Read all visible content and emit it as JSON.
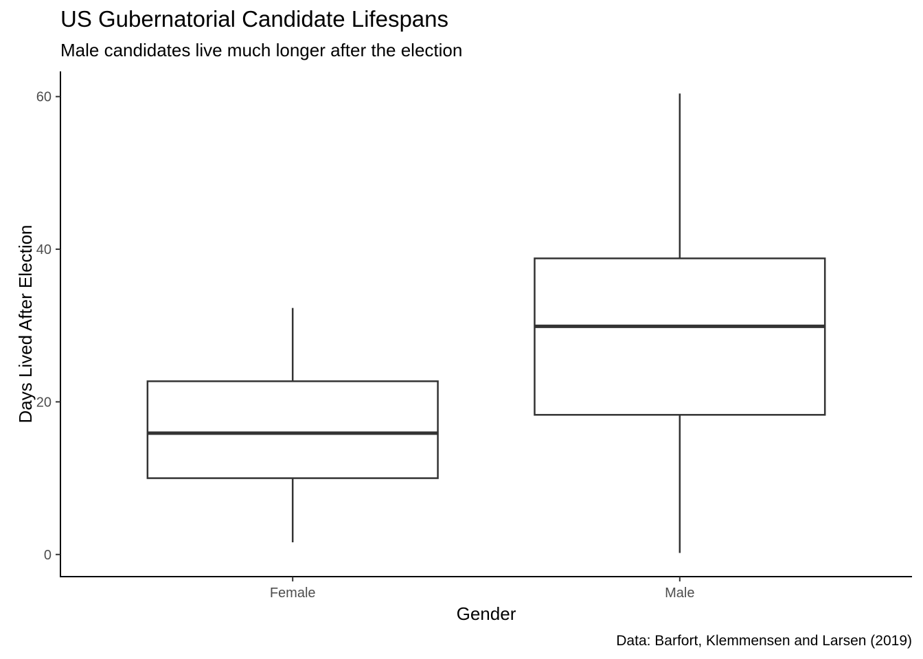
{
  "chart_data": {
    "type": "boxplot",
    "title": "US Gubernatorial Candidate Lifespans",
    "subtitle": "Male candidates live much longer after the election",
    "caption": "Data: Barfort, Klemmensen and Larsen (2019)",
    "xlabel": "Gender",
    "ylabel": "Days Lived After Election",
    "categories": [
      "Female",
      "Male"
    ],
    "boxes": [
      {
        "category": "Female",
        "min": 1.6,
        "q1": 10.0,
        "median": 15.9,
        "q3": 22.7,
        "max": 32.3
      },
      {
        "category": "Male",
        "min": 0.2,
        "q1": 18.3,
        "median": 29.9,
        "q3": 38.8,
        "max": 60.4
      }
    ],
    "ylim": [
      -2.9,
      63.3
    ],
    "yticks": [
      0,
      20,
      40,
      60
    ],
    "grid": false,
    "colors": {
      "box_stroke": "#333333",
      "axis": "#000000",
      "tick_label": "#4d4d4d"
    }
  }
}
